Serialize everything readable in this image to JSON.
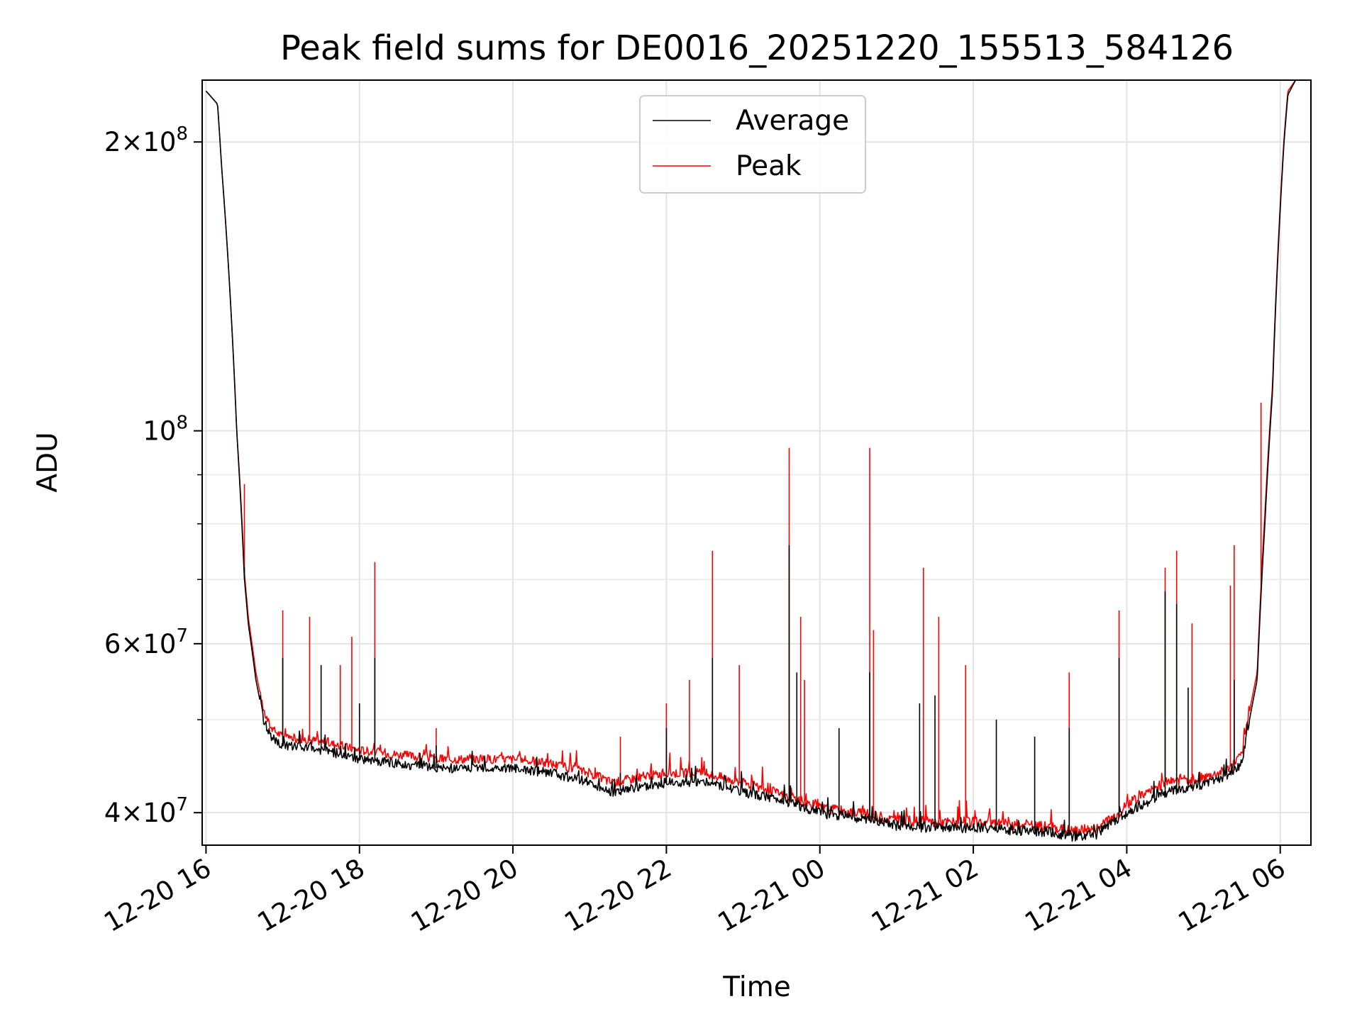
{
  "chart_data": {
    "type": "line",
    "title": "Peak field sums for DE0016_20251220_155513_584126",
    "xlabel": "Time",
    "ylabel": "ADU",
    "yscale": "log",
    "grid": true,
    "legend_position": "upper-center",
    "ylim": [
      37000000,
      232000000
    ],
    "xlim_hours_from_12_20_16_00": [
      -0.05,
      14.4
    ],
    "x_ticks": [
      {
        "hour": 0,
        "label": "12-20 16"
      },
      {
        "hour": 2,
        "label": "12-20 18"
      },
      {
        "hour": 4,
        "label": "12-20 20"
      },
      {
        "hour": 6,
        "label": "12-20 22"
      },
      {
        "hour": 8,
        "label": "12-21 00"
      },
      {
        "hour": 10,
        "label": "12-21 02"
      },
      {
        "hour": 12,
        "label": "12-21 04"
      },
      {
        "hour": 14,
        "label": "12-21 06"
      }
    ],
    "y_ticks": [
      {
        "value": 40000000,
        "mant": "4",
        "exp": "7"
      },
      {
        "value": 60000000,
        "mant": "6",
        "exp": "7"
      },
      {
        "value": 100000000,
        "mant": "",
        "exp": "8"
      },
      {
        "value": 200000000,
        "mant": "2",
        "exp": "8"
      }
    ],
    "y_minor_ticks": [
      50000000,
      70000000,
      80000000,
      90000000
    ],
    "series": [
      {
        "name": "Average",
        "color": "#000000",
        "points": [
          [
            0.0,
            226
          ],
          [
            0.15,
            219
          ],
          [
            0.2,
            190
          ],
          [
            0.3,
            145
          ],
          [
            0.4,
            100
          ],
          [
            0.45,
            85
          ],
          [
            0.5,
            70
          ],
          [
            0.55,
            63
          ],
          [
            0.65,
            55
          ],
          [
            0.75,
            50
          ],
          [
            0.85,
            48
          ],
          [
            1.0,
            47
          ],
          [
            1.5,
            46.5
          ],
          [
            2.0,
            45.5
          ],
          [
            2.5,
            45
          ],
          [
            3.0,
            44.5
          ],
          [
            3.5,
            44.5
          ],
          [
            4.0,
            44.5
          ],
          [
            4.5,
            44
          ],
          [
            5.0,
            43
          ],
          [
            5.3,
            42
          ],
          [
            5.6,
            42.5
          ],
          [
            6.0,
            43
          ],
          [
            6.5,
            43
          ],
          [
            7.0,
            42
          ],
          [
            7.5,
            41.3
          ],
          [
            8.0,
            40
          ],
          [
            8.5,
            39.5
          ],
          [
            9.0,
            38.8
          ],
          [
            9.5,
            38.6
          ],
          [
            10.0,
            38.6
          ],
          [
            10.5,
            38.4
          ],
          [
            11.0,
            38.2
          ],
          [
            11.3,
            37.8
          ],
          [
            11.6,
            38
          ],
          [
            11.9,
            39.5
          ],
          [
            12.0,
            40
          ],
          [
            12.5,
            42
          ],
          [
            13.0,
            42.8
          ],
          [
            13.3,
            43.5
          ],
          [
            13.5,
            45
          ],
          [
            13.7,
            55
          ],
          [
            13.8,
            80
          ],
          [
            13.9,
            110
          ],
          [
            14.0,
            170
          ],
          [
            14.05,
            200
          ],
          [
            14.1,
            224
          ],
          [
            14.2,
            232
          ]
        ],
        "spikes": [
          [
            0.5,
            72
          ],
          [
            1.0,
            58
          ],
          [
            1.5,
            57
          ],
          [
            2.0,
            52
          ],
          [
            2.2,
            58
          ],
          [
            3.0,
            47
          ],
          [
            5.4,
            44
          ],
          [
            6.0,
            49
          ],
          [
            6.6,
            58
          ],
          [
            7.6,
            76
          ],
          [
            7.7,
            56
          ],
          [
            8.25,
            49
          ],
          [
            8.65,
            56
          ],
          [
            9.3,
            52
          ],
          [
            9.5,
            53
          ],
          [
            10.3,
            50
          ],
          [
            10.8,
            48
          ],
          [
            11.25,
            49
          ],
          [
            11.9,
            58
          ],
          [
            12.5,
            68
          ],
          [
            12.65,
            66
          ],
          [
            12.8,
            54
          ],
          [
            13.4,
            55
          ]
        ]
      },
      {
        "name": "Peak",
        "color": "#ff0000",
        "points": [
          [
            0.0,
            226
          ],
          [
            0.15,
            219
          ],
          [
            0.2,
            190
          ],
          [
            0.3,
            145
          ],
          [
            0.4,
            100
          ],
          [
            0.45,
            86
          ],
          [
            0.5,
            71
          ],
          [
            0.55,
            64
          ],
          [
            0.65,
            56
          ],
          [
            0.75,
            51
          ],
          [
            0.85,
            49
          ],
          [
            1.0,
            48
          ],
          [
            1.5,
            47.5
          ],
          [
            2.0,
            46.5
          ],
          [
            2.5,
            46
          ],
          [
            3.0,
            45.5
          ],
          [
            3.5,
            45.5
          ],
          [
            4.0,
            45.5
          ],
          [
            4.5,
            45
          ],
          [
            5.0,
            44
          ],
          [
            5.3,
            43
          ],
          [
            5.6,
            43.5
          ],
          [
            6.0,
            44
          ],
          [
            6.5,
            44
          ],
          [
            7.0,
            43
          ],
          [
            7.5,
            41.8
          ],
          [
            8.0,
            40.5
          ],
          [
            8.5,
            40
          ],
          [
            9.0,
            39.3
          ],
          [
            9.5,
            39.1
          ],
          [
            10.0,
            39.1
          ],
          [
            10.5,
            38.9
          ],
          [
            11.0,
            38.7
          ],
          [
            11.3,
            38.3
          ],
          [
            11.6,
            38.5
          ],
          [
            11.9,
            40
          ],
          [
            12.0,
            40.8
          ],
          [
            12.5,
            43
          ],
          [
            13.0,
            43.5
          ],
          [
            13.3,
            44.3
          ],
          [
            13.5,
            46
          ],
          [
            13.7,
            56
          ],
          [
            13.8,
            82
          ],
          [
            13.9,
            112
          ],
          [
            14.0,
            172
          ],
          [
            14.05,
            202
          ],
          [
            14.1,
            226
          ],
          [
            14.2,
            232
          ]
        ],
        "spikes": [
          [
            0.5,
            88
          ],
          [
            1.0,
            65
          ],
          [
            1.35,
            64
          ],
          [
            1.75,
            57
          ],
          [
            1.9,
            61
          ],
          [
            2.2,
            73
          ],
          [
            3.0,
            49
          ],
          [
            5.4,
            48
          ],
          [
            6.0,
            52
          ],
          [
            6.3,
            55
          ],
          [
            6.6,
            75
          ],
          [
            6.95,
            57
          ],
          [
            7.6,
            96
          ],
          [
            7.75,
            64
          ],
          [
            7.8,
            55
          ],
          [
            8.65,
            96
          ],
          [
            8.7,
            62
          ],
          [
            9.35,
            72
          ],
          [
            9.55,
            64
          ],
          [
            9.9,
            57
          ],
          [
            11.25,
            56
          ],
          [
            11.9,
            65
          ],
          [
            12.5,
            72
          ],
          [
            12.65,
            75
          ],
          [
            12.85,
            63
          ],
          [
            13.35,
            69
          ],
          [
            13.4,
            76
          ],
          [
            13.75,
            107
          ]
        ]
      }
    ]
  }
}
